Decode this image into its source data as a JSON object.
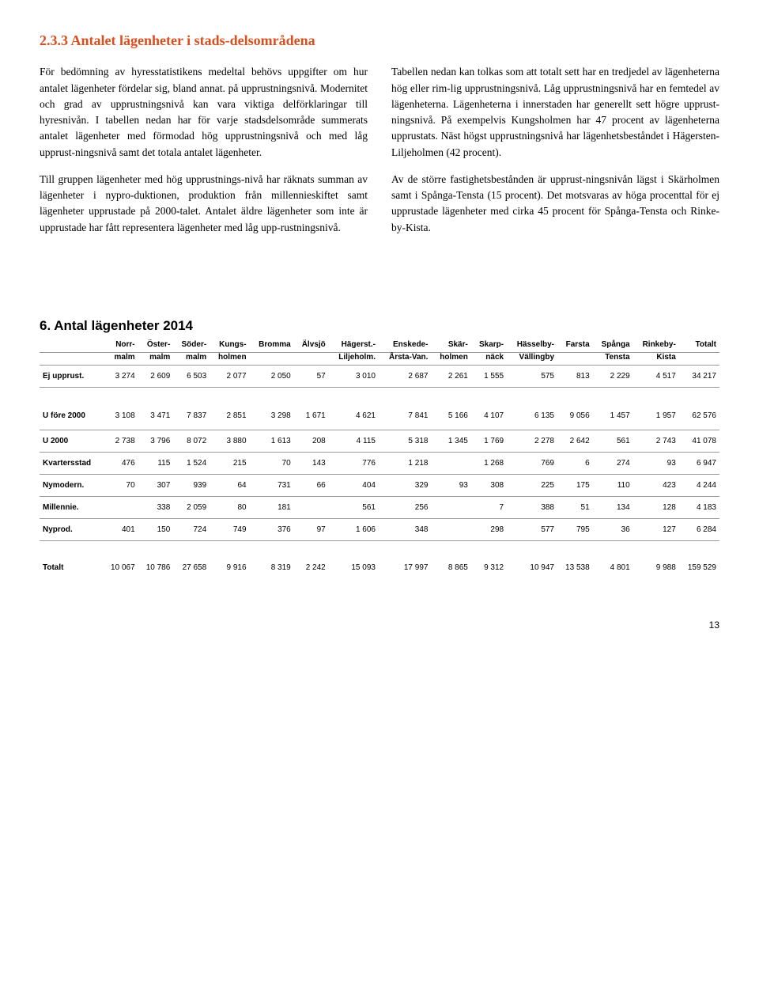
{
  "text_color": "#000000",
  "accent_color": "#d94f1f",
  "background_color": "#ffffff",
  "border_color": "#999999",
  "section_title": "2.3.3 Antalet lägenheter i stads-delsområdena",
  "left": {
    "p1": "För bedömning av hyresstatistikens medeltal behövs uppgifter om hur antalet lägenheter fördelar sig, bland annat. på upprustningsnivå. Modernitet och grad av upprustningsnivå kan vara viktiga delförklaringar till hyresnivån. I tabellen nedan har för varje stadsdelsområde summerats antalet lägenheter med förmodad hög upprustningsnivå och med låg upprust-ningsnivå samt det totala antalet lägenheter.",
    "p2": "Till gruppen lägenheter med hög upprustnings-nivå har räknats summan av lägenheter i nypro-duktionen, produktion från millennieskiftet samt lägenheter upprustade på 2000-talet. Antalet äldre lägenheter som inte är upprustade har fått representera lägenheter med låg upp-rustningsnivå."
  },
  "right": {
    "p1": "Tabellen nedan kan tolkas som att totalt sett har en tredjedel av lägenheterna hög eller rim-lig upprustningsnivå. Låg upprustningsnivå har en femtedel av lägenheterna. Lägenheterna i innerstaden har generellt sett högre upprust-ningsnivå. På exempelvis Kungsholmen har 47 procent av lägenheterna upprustats. Näst högst upprustningsnivå har lägenhetsbeståndet i Hägersten-Liljeholmen (42 procent).",
    "p2": "Av de större fastighetsbestånden är upprust-ningsnivån lägst i Skärholmen samt i Spånga-Tensta (15 procent). Det motsvaras av höga procenttal för ej upprustade lägenheter med cirka 45 procent för Spånga-Tensta och Rinke-by-Kista."
  },
  "table": {
    "title": "6. Antal lägenheter 2014",
    "header1": [
      "",
      "Norr-",
      "Öster-",
      "Söder-",
      "Kungs-",
      "Bromma",
      "Älvsjö",
      "Hägerst.-",
      "Enskede-",
      "Skär-",
      "Skarp-",
      "Hässelby-",
      "Farsta",
      "Spånga",
      "Rinkeby-",
      "Totalt"
    ],
    "header2": [
      "",
      "malm",
      "malm",
      "malm",
      "holmen",
      "",
      "",
      "Liljeholm.",
      "Årsta-Van.",
      "holmen",
      "näck",
      "Vällingby",
      "",
      "Tensta",
      "Kista",
      ""
    ],
    "rows": [
      {
        "label": "Ej upprust.",
        "cells": [
          "3 274",
          "2 609",
          "6 503",
          "2 077",
          "2 050",
          "57",
          "3 010",
          "2 687",
          "2 261",
          "1 555",
          "575",
          "813",
          "2 229",
          "4 517",
          "34 217"
        ],
        "tall": false
      },
      {
        "label": "U före 2000",
        "cells": [
          "3 108",
          "3 471",
          "7 837",
          "2 851",
          "3 298",
          "1 671",
          "4 621",
          "7 841",
          "5 166",
          "4 107",
          "6 135",
          "9 056",
          "1 457",
          "1 957",
          "62 576"
        ],
        "tall": true
      },
      {
        "label": "U 2000",
        "cells": [
          "2 738",
          "3 796",
          "8 072",
          "3 880",
          "1 613",
          "208",
          "4 115",
          "5 318",
          "1 345",
          "1 769",
          "2 278",
          "2 642",
          "561",
          "2 743",
          "41 078"
        ],
        "tall": false
      },
      {
        "label": "Kvartersstad",
        "cells": [
          "476",
          "115",
          "1 524",
          "215",
          "70",
          "143",
          "776",
          "1 218",
          "",
          "1 268",
          "769",
          "6",
          "274",
          "93",
          "6 947"
        ],
        "tall": false
      },
      {
        "label": "Nymodern.",
        "cells": [
          "70",
          "307",
          "939",
          "64",
          "731",
          "66",
          "404",
          "329",
          "93",
          "308",
          "225",
          "175",
          "110",
          "423",
          "4 244"
        ],
        "tall": false
      },
      {
        "label": "Millennie.",
        "cells": [
          "",
          "338",
          "2 059",
          "80",
          "181",
          "",
          "561",
          "256",
          "",
          "7",
          "388",
          "51",
          "134",
          "128",
          "4 183"
        ],
        "tall": false
      },
      {
        "label": "Nyprod.",
        "cells": [
          "401",
          "150",
          "724",
          "749",
          "376",
          "97",
          "1 606",
          "348",
          "",
          "298",
          "577",
          "795",
          "36",
          "127",
          "6 284"
        ],
        "tall": false
      }
    ],
    "total": {
      "label": "Totalt",
      "cells": [
        "10 067",
        "10 786",
        "27 658",
        "9 916",
        "8 319",
        "2 242",
        "15 093",
        "17 997",
        "8 865",
        "9 312",
        "10 947",
        "13 538",
        "4 801",
        "9 988",
        "159 529"
      ]
    }
  },
  "page_number": "13"
}
